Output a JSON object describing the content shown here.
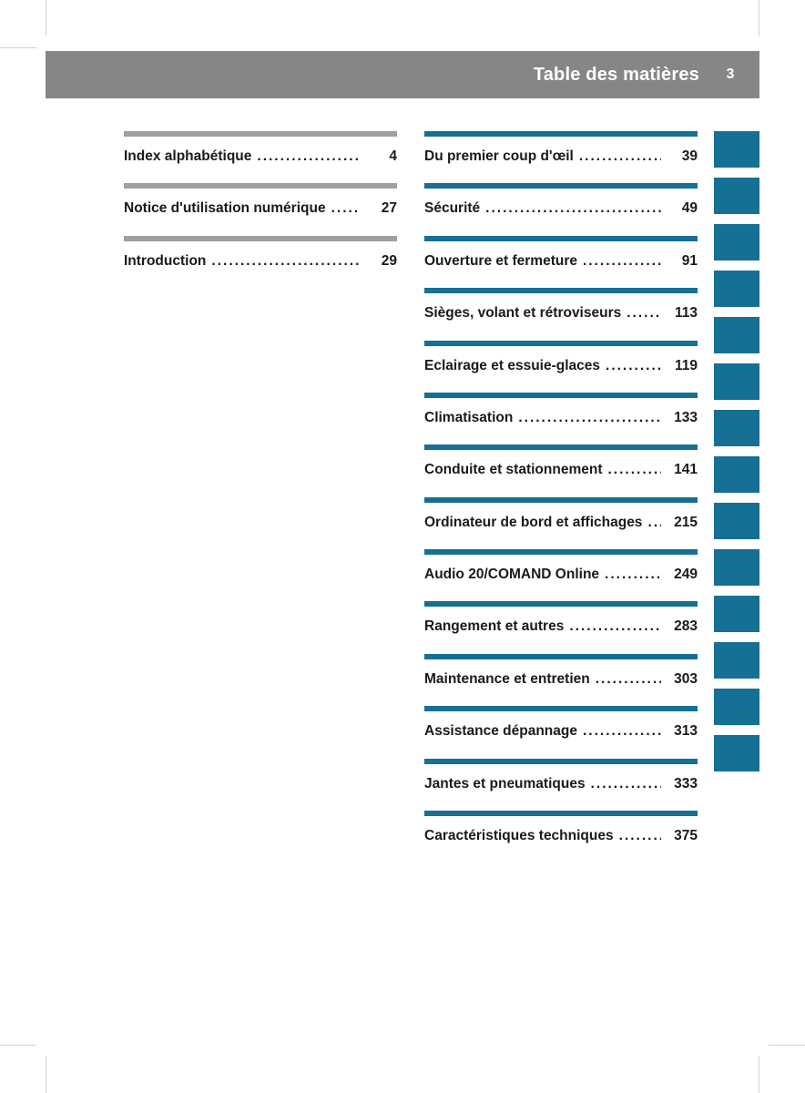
{
  "page": {
    "title": "Table des matières",
    "number": "3"
  },
  "colors": {
    "teal": "#166f94",
    "gray_header": "#868686",
    "gray_rule": "#a0a0a0",
    "text": "#1a1a1a",
    "page_bg": "#ffffff"
  },
  "left_column": [
    {
      "label": "Index alphabétique",
      "page": "4"
    },
    {
      "label": "Notice d'utilisation numérique",
      "page": "27"
    },
    {
      "label": "Introduction",
      "page": "29"
    }
  ],
  "right_column": [
    {
      "label": "Du premier coup d'œil",
      "page": "39"
    },
    {
      "label": "Sécurité",
      "page": "49"
    },
    {
      "label": "Ouverture et fermeture",
      "page": "91"
    },
    {
      "label": "Sièges, volant et rétroviseurs",
      "page": "113"
    },
    {
      "label": "Eclairage et essuie-glaces",
      "page": "119"
    },
    {
      "label": "Climatisation",
      "page": "133"
    },
    {
      "label": "Conduite et stationnement",
      "page": "141"
    },
    {
      "label": "Ordinateur de bord et affichages",
      "page": "215"
    },
    {
      "label": "Audio 20/COMAND Online",
      "page": "249"
    },
    {
      "label": "Rangement et autres",
      "page": "283"
    },
    {
      "label": "Maintenance et entretien",
      "page": "303"
    },
    {
      "label": "Assistance dépannage",
      "page": "313"
    },
    {
      "label": "Jantes et pneumatiques",
      "page": "333"
    },
    {
      "label": "Caractéristiques techniques",
      "page": "375"
    }
  ],
  "tabs_count": 14
}
